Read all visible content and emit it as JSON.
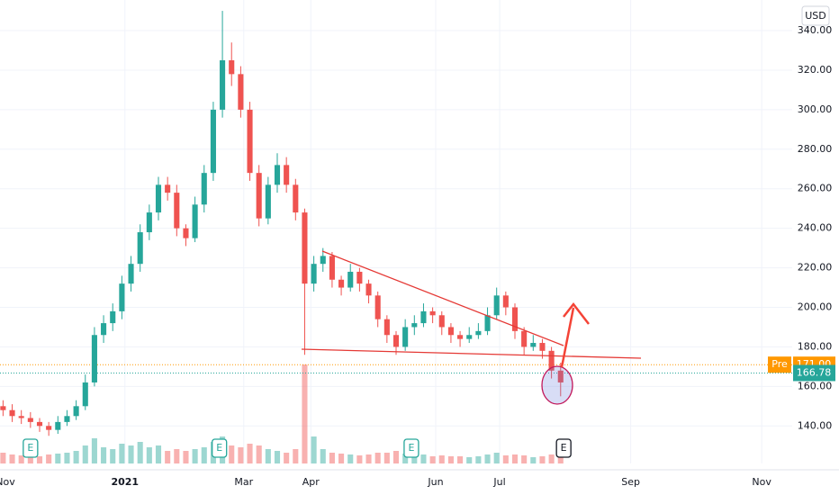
{
  "chart_data": {
    "type": "candlestick",
    "currency": "USD",
    "x": [
      -40,
      -37,
      -34,
      -31,
      -28,
      -25,
      -22,
      -19,
      -16,
      -13,
      -10,
      -7,
      -4,
      -1,
      2,
      5,
      8,
      11,
      14,
      17,
      20,
      23,
      26,
      29,
      32,
      35,
      38,
      41,
      44,
      47,
      50,
      53,
      56,
      59,
      62,
      65,
      68,
      71,
      74,
      77,
      80,
      83,
      86,
      89,
      92,
      95,
      98,
      101,
      104,
      107,
      110,
      113,
      116,
      119,
      122,
      125,
      128,
      131,
      134,
      137,
      140,
      143
    ],
    "open": [
      150,
      148,
      145,
      144,
      142,
      140,
      138,
      142,
      145,
      150,
      162,
      186,
      192,
      198,
      212,
      222,
      238,
      248,
      262,
      258,
      240,
      235,
      252,
      268,
      300,
      325,
      318,
      300,
      268,
      245,
      262,
      272,
      262,
      248,
      212,
      222,
      226,
      214,
      210,
      218,
      212,
      206,
      194,
      186,
      180,
      190,
      192,
      198,
      196,
      190,
      186,
      184,
      186,
      188,
      196,
      206,
      200,
      188,
      180,
      182,
      178,
      168
    ],
    "high": [
      153,
      151,
      148,
      147,
      144,
      142,
      145,
      148,
      153,
      166,
      190,
      196,
      202,
      216,
      226,
      242,
      252,
      266,
      266,
      262,
      242,
      256,
      272,
      304,
      350,
      334,
      322,
      304,
      272,
      266,
      278,
      276,
      265,
      250,
      226,
      230,
      228,
      216,
      222,
      220,
      214,
      208,
      196,
      188,
      194,
      196,
      202,
      200,
      198,
      192,
      188,
      190,
      192,
      200,
      210,
      208,
      202,
      190,
      186,
      184,
      180,
      172
    ],
    "low": [
      145,
      142,
      141,
      139,
      137,
      135,
      136,
      140,
      143,
      148,
      160,
      182,
      188,
      194,
      208,
      218,
      234,
      244,
      254,
      236,
      231,
      233,
      248,
      264,
      296,
      312,
      296,
      264,
      241,
      242,
      258,
      258,
      244,
      176,
      208,
      218,
      210,
      206,
      208,
      208,
      202,
      190,
      182,
      176,
      178,
      186,
      190,
      192,
      186,
      182,
      180,
      182,
      184,
      186,
      194,
      196,
      184,
      176,
      178,
      174,
      164,
      155
    ],
    "close": [
      148,
      145,
      144,
      142,
      140,
      138,
      142,
      145,
      150,
      162,
      186,
      192,
      198,
      212,
      222,
      238,
      248,
      262,
      258,
      240,
      235,
      252,
      268,
      300,
      325,
      318,
      300,
      268,
      245,
      262,
      272,
      262,
      248,
      212,
      222,
      226,
      214,
      210,
      218,
      212,
      206,
      194,
      186,
      180,
      190,
      192,
      198,
      196,
      190,
      186,
      184,
      186,
      188,
      196,
      206,
      200,
      188,
      180,
      182,
      178,
      168,
      162
    ],
    "volume": [
      12,
      10,
      9,
      9,
      8,
      10,
      11,
      12,
      14,
      20,
      28,
      18,
      16,
      22,
      20,
      24,
      18,
      20,
      14,
      16,
      14,
      16,
      18,
      24,
      30,
      20,
      18,
      22,
      20,
      16,
      14,
      12,
      16,
      110,
      30,
      16,
      12,
      11,
      10,
      9,
      10,
      12,
      12,
      14,
      11,
      9,
      10,
      8,
      9,
      8,
      8,
      7,
      8,
      10,
      12,
      9,
      10,
      9,
      7,
      8,
      10,
      12
    ],
    "up_color": "#26a69a",
    "down_color": "#ef5350",
    "xlim": [
      -41,
      219
    ],
    "xticks": [
      {
        "value": -42,
        "label": "Nov"
      },
      {
        "value": 0,
        "label": "2021"
      },
      {
        "value": 39,
        "label": "Mar"
      },
      {
        "value": 61,
        "label": "Apr"
      },
      {
        "value": 102,
        "label": "Jun"
      },
      {
        "value": 123,
        "label": "Jul"
      },
      {
        "value": 166,
        "label": "Sep"
      },
      {
        "value": 209,
        "label": "Nov"
      }
    ],
    "ylim": [
      121,
      355.5
    ],
    "yticks": [
      {
        "value": 140,
        "label": "140.00"
      },
      {
        "value": 160,
        "label": "160.00"
      },
      {
        "value": 180,
        "label": "180.00"
      },
      {
        "value": 200,
        "label": "200.00"
      },
      {
        "value": 220,
        "label": "220.00"
      },
      {
        "value": 240,
        "label": "240.00"
      },
      {
        "value": 260,
        "label": "260.00"
      },
      {
        "value": 280,
        "label": "280.00"
      },
      {
        "value": 300,
        "label": "300.00"
      },
      {
        "value": 320,
        "label": "320.00"
      },
      {
        "value": 340,
        "label": "340.00"
      }
    ],
    "grid": true,
    "price_lines": [
      {
        "name": "Pre",
        "value": 171,
        "value_label": "171.00",
        "color": "#ff9800"
      },
      {
        "value": 166.78,
        "color": "#26a69a"
      }
    ],
    "events": [
      {
        "x": -31,
        "label": "E"
      },
      {
        "x": 31,
        "label": "E"
      },
      {
        "x": 94,
        "label": "E"
      },
      {
        "x": 144,
        "label": "E"
      }
    ]
  }
}
